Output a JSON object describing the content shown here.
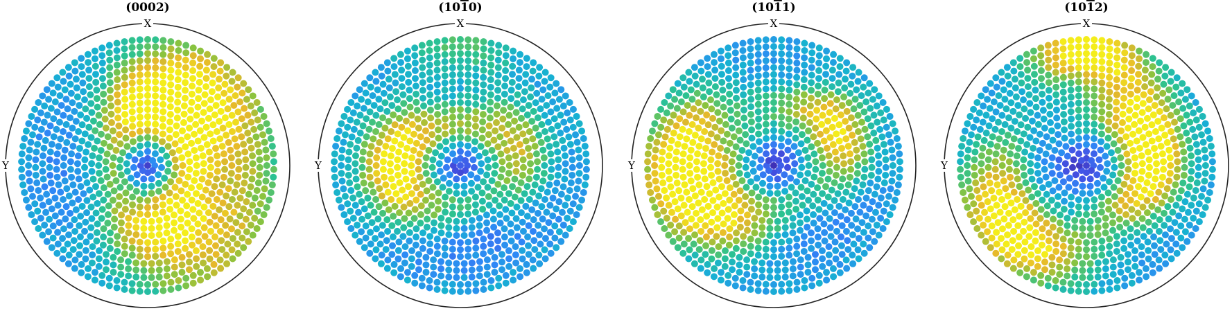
{
  "chart_data": {
    "type": "scatter",
    "colormap": [
      "#3e26a8",
      "#4354e6",
      "#2f88f6",
      "#17b1d2",
      "#2cc291",
      "#8ac33f",
      "#e6b82b",
      "#f4ed1b"
    ],
    "plots": [
      {
        "title_hkl": [
          {
            "t": "(0002)",
            "bar": false
          }
        ],
        "x_label": "X",
        "y_label": "Y",
        "rings": 18,
        "features": [
          {
            "psi": 15,
            "rho": 0.45,
            "w": 1.0,
            "amp": 0.9
          },
          {
            "psi": 165,
            "rho": 0.45,
            "w": 1.0,
            "amp": 0.7
          },
          {
            "psi": 40,
            "rho": 0.8,
            "w": 1.4,
            "amp": 0.55
          },
          {
            "psi": 140,
            "rho": 0.85,
            "w": 1.4,
            "amp": 0.45
          }
        ]
      },
      {
        "title_hkl": [
          {
            "t": "(10",
            "bar": false
          },
          {
            "t": "1",
            "bar": true
          },
          {
            "t": "0)",
            "bar": false
          }
        ],
        "x_label": "X",
        "y_label": "Y",
        "rings": 18,
        "features": [
          {
            "psi": 270,
            "rho": 0.5,
            "w": 1.0,
            "amp": 0.9
          },
          {
            "psi": 70,
            "rho": 0.45,
            "w": 1.0,
            "amp": 0.6
          },
          {
            "psi": 0,
            "rho": 0.9,
            "w": 0.8,
            "amp": 0.25
          }
        ]
      },
      {
        "title_hkl": [
          {
            "t": "(10",
            "bar": false
          },
          {
            "t": "1",
            "bar": true
          },
          {
            "t": "1)",
            "bar": false
          }
        ],
        "x_label": "X",
        "y_label": "Y",
        "rings": 18,
        "features": [
          {
            "psi": 265,
            "rho": 0.72,
            "w": 1.2,
            "amp": 0.9
          },
          {
            "psi": 60,
            "rho": 0.55,
            "w": 0.9,
            "amp": 0.75
          },
          {
            "psi": 230,
            "rho": 0.4,
            "w": 0.9,
            "amp": 0.45
          }
        ]
      },
      {
        "title_hkl": [
          {
            "t": "(10",
            "bar": false
          },
          {
            "t": "1",
            "bar": true
          },
          {
            "t": "2)",
            "bar": false
          }
        ],
        "x_label": "X",
        "y_label": "Y",
        "rings": 18,
        "features": [
          {
            "psi": 230,
            "rho": 0.75,
            "w": 1.2,
            "amp": 0.85
          },
          {
            "psi": 88,
            "rho": 0.5,
            "w": 1.0,
            "amp": 0.8
          },
          {
            "psi": 0,
            "rho": 0.92,
            "w": 0.8,
            "amp": 0.75
          },
          {
            "psi": 40,
            "rho": 0.65,
            "w": 0.9,
            "amp": 0.4
          }
        ]
      }
    ]
  }
}
